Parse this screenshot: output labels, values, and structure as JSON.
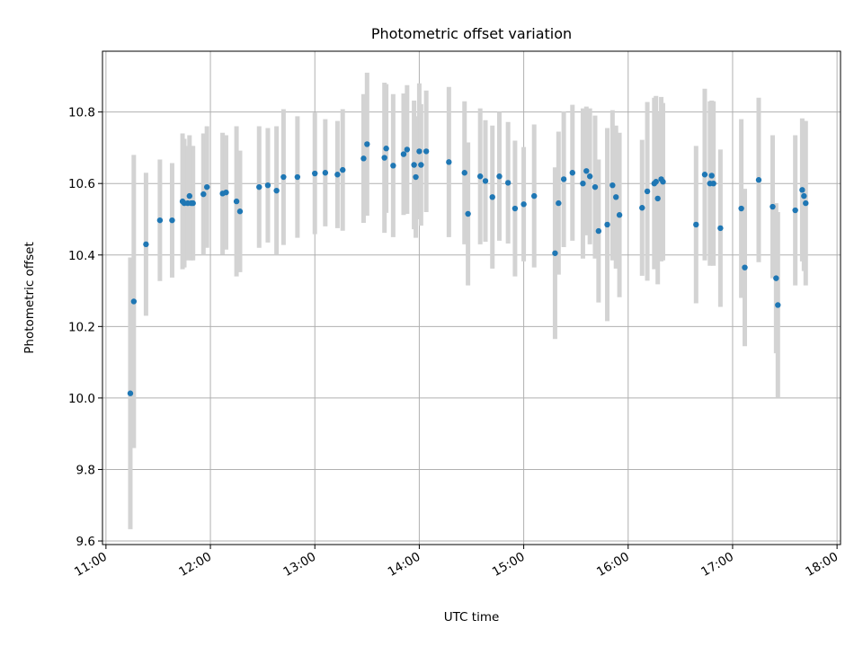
{
  "chart_data": {
    "type": "scatter",
    "title": "Photometric offset variation",
    "xlabel": "UTC time",
    "ylabel": "Photometric offset",
    "xlim": [
      "10:58",
      "18:02"
    ],
    "ylim": [
      9.59,
      10.97
    ],
    "x_ticks": [
      "11:00",
      "12:00",
      "13:00",
      "14:00",
      "15:00",
      "16:00",
      "17:00",
      "18:00"
    ],
    "y_ticks": [
      "9.6",
      "9.8",
      "10.0",
      "10.2",
      "10.4",
      "10.6",
      "10.8"
    ],
    "grid": true,
    "marker_color": "#1f77b4",
    "errorbar_color": "#d3d3d3",
    "points": [
      [
        "11:14",
        10.013,
        0.38
      ],
      [
        "11:16",
        10.27,
        0.41
      ],
      [
        "11:23",
        10.43,
        0.2
      ],
      [
        "11:31",
        10.497,
        0.17
      ],
      [
        "11:38",
        10.497,
        0.16
      ],
      [
        "11:44",
        10.55,
        0.19
      ],
      [
        "11:45",
        10.545,
        0.18
      ],
      [
        "11:47",
        10.545,
        0.16
      ],
      [
        "11:48",
        10.565,
        0.17
      ],
      [
        "11:49",
        10.545,
        0.16
      ],
      [
        "11:50",
        10.545,
        0.16
      ],
      [
        "11:56",
        10.57,
        0.17
      ],
      [
        "11:58",
        10.59,
        0.17
      ],
      [
        "12:07",
        10.572,
        0.17
      ],
      [
        "12:09",
        10.575,
        0.16
      ],
      [
        "12:15",
        10.55,
        0.21
      ],
      [
        "12:17",
        10.522,
        0.17
      ],
      [
        "12:28",
        10.59,
        0.17
      ],
      [
        "12:33",
        10.595,
        0.16
      ],
      [
        "12:38",
        10.58,
        0.18
      ],
      [
        "12:42",
        10.618,
        0.19
      ],
      [
        "12:50",
        10.618,
        0.17
      ],
      [
        "13:00",
        10.628,
        0.17
      ],
      [
        "13:06",
        10.63,
        0.15
      ],
      [
        "13:13",
        10.625,
        0.15
      ],
      [
        "13:16",
        10.638,
        0.17
      ],
      [
        "13:28",
        10.67,
        0.18
      ],
      [
        "13:30",
        10.71,
        0.2
      ],
      [
        "13:40",
        10.672,
        0.21
      ],
      [
        "13:41",
        10.698,
        0.18
      ],
      [
        "13:45",
        10.65,
        0.2
      ],
      [
        "13:51",
        10.682,
        0.17
      ],
      [
        "13:53",
        10.695,
        0.18
      ],
      [
        "13:57",
        10.652,
        0.18
      ],
      [
        "13:58",
        10.618,
        0.17
      ],
      [
        "14:00",
        10.69,
        0.19
      ],
      [
        "14:01",
        10.652,
        0.17
      ],
      [
        "14:04",
        10.69,
        0.17
      ],
      [
        "14:17",
        10.66,
        0.21
      ],
      [
        "14:26",
        10.63,
        0.2
      ],
      [
        "14:28",
        10.515,
        0.2
      ],
      [
        "14:35",
        10.62,
        0.19
      ],
      [
        "14:38",
        10.607,
        0.17
      ],
      [
        "14:42",
        10.562,
        0.2
      ],
      [
        "14:46",
        10.62,
        0.18
      ],
      [
        "14:51",
        10.602,
        0.17
      ],
      [
        "14:55",
        10.53,
        0.19
      ],
      [
        "15:00",
        10.542,
        0.16
      ],
      [
        "15:06",
        10.565,
        0.2
      ],
      [
        "15:18",
        10.405,
        0.24
      ],
      [
        "15:20",
        10.545,
        0.2
      ],
      [
        "15:23",
        10.612,
        0.19
      ],
      [
        "15:28",
        10.63,
        0.19
      ],
      [
        "15:34",
        10.6,
        0.21
      ],
      [
        "15:36",
        10.635,
        0.18
      ],
      [
        "15:38",
        10.62,
        0.19
      ],
      [
        "15:41",
        10.59,
        0.2
      ],
      [
        "15:43",
        10.467,
        0.2
      ],
      [
        "15:48",
        10.485,
        0.27
      ],
      [
        "15:51",
        10.595,
        0.21
      ],
      [
        "15:53",
        10.562,
        0.2
      ],
      [
        "15:55",
        10.512,
        0.23
      ],
      [
        "16:08",
        10.532,
        0.19
      ],
      [
        "16:11",
        10.578,
        0.25
      ],
      [
        "16:15",
        10.6,
        0.24
      ],
      [
        "16:16",
        10.605,
        0.24
      ],
      [
        "16:17",
        10.558,
        0.24
      ],
      [
        "16:19",
        10.612,
        0.23
      ],
      [
        "16:20",
        10.605,
        0.22
      ],
      [
        "16:39",
        10.485,
        0.22
      ],
      [
        "16:44",
        10.625,
        0.24
      ],
      [
        "16:47",
        10.6,
        0.23
      ],
      [
        "16:48",
        10.622,
        0.21
      ],
      [
        "16:49",
        10.6,
        0.23
      ],
      [
        "16:53",
        10.475,
        0.22
      ],
      [
        "17:05",
        10.53,
        0.25
      ],
      [
        "17:07",
        10.365,
        0.22
      ],
      [
        "17:15",
        10.61,
        0.23
      ],
      [
        "17:23",
        10.535,
        0.2
      ],
      [
        "17:25",
        10.335,
        0.21
      ],
      [
        "17:26",
        10.26,
        0.26
      ],
      [
        "17:36",
        10.525,
        0.21
      ],
      [
        "17:40",
        10.582,
        0.2
      ],
      [
        "17:41",
        10.565,
        0.21
      ],
      [
        "17:42",
        10.545,
        0.23
      ]
    ]
  }
}
